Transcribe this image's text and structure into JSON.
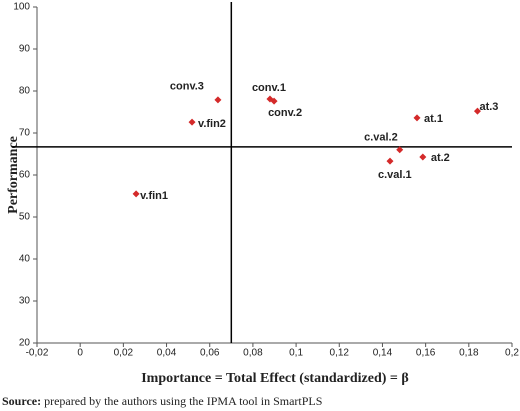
{
  "chart_data": {
    "type": "scatter",
    "x_label": "Importance = Total Effect (standardized) = β",
    "y_label": "Performance",
    "labels": [
      "conv.3",
      "v.fin2",
      "conv.1",
      "conv.2",
      "at.1",
      "at.3",
      "c.val.2",
      "c.val.1",
      "at.2",
      "v.fin1"
    ],
    "x": [
      0.0638,
      0.0518,
      0.0879,
      0.0898,
      0.156,
      0.184,
      0.148,
      0.1435,
      0.1587,
      0.0259
    ],
    "y": [
      77.9,
      72.6,
      78.1,
      77.6,
      73.6,
      75.2,
      66.0,
      63.3,
      64.3,
      55.5
    ],
    "color": "#d42a2a",
    "xlim": [
      -0.02,
      0.2
    ],
    "xticks": [
      {
        "value": -0.02,
        "label": "-0,02"
      },
      0,
      {
        "value": 0.02,
        "label": "0,02"
      },
      {
        "value": 0.04,
        "label": "0,04"
      },
      {
        "value": 0.06,
        "label": "0,06"
      },
      {
        "value": 0.08,
        "label": "0,08"
      },
      {
        "value": 0.1,
        "label": "0,1"
      },
      {
        "value": 0.12,
        "label": "0,12"
      },
      {
        "value": 0.14,
        "label": "0,14"
      },
      {
        "value": 0.16,
        "label": "0,16"
      },
      {
        "value": 0.18,
        "label": "0,18"
      },
      {
        "value": 0.2,
        "label": "0,2"
      }
    ],
    "ylim": [
      20,
      100
    ],
    "yticks": [
      20,
      30,
      40,
      50,
      60,
      70,
      80,
      90,
      100
    ],
    "vline": 0.07,
    "hline": 66.7,
    "grid": false,
    "note_label": "Source:",
    "note": " prepared by the authors using the IPMA tool in SmartPLS"
  }
}
